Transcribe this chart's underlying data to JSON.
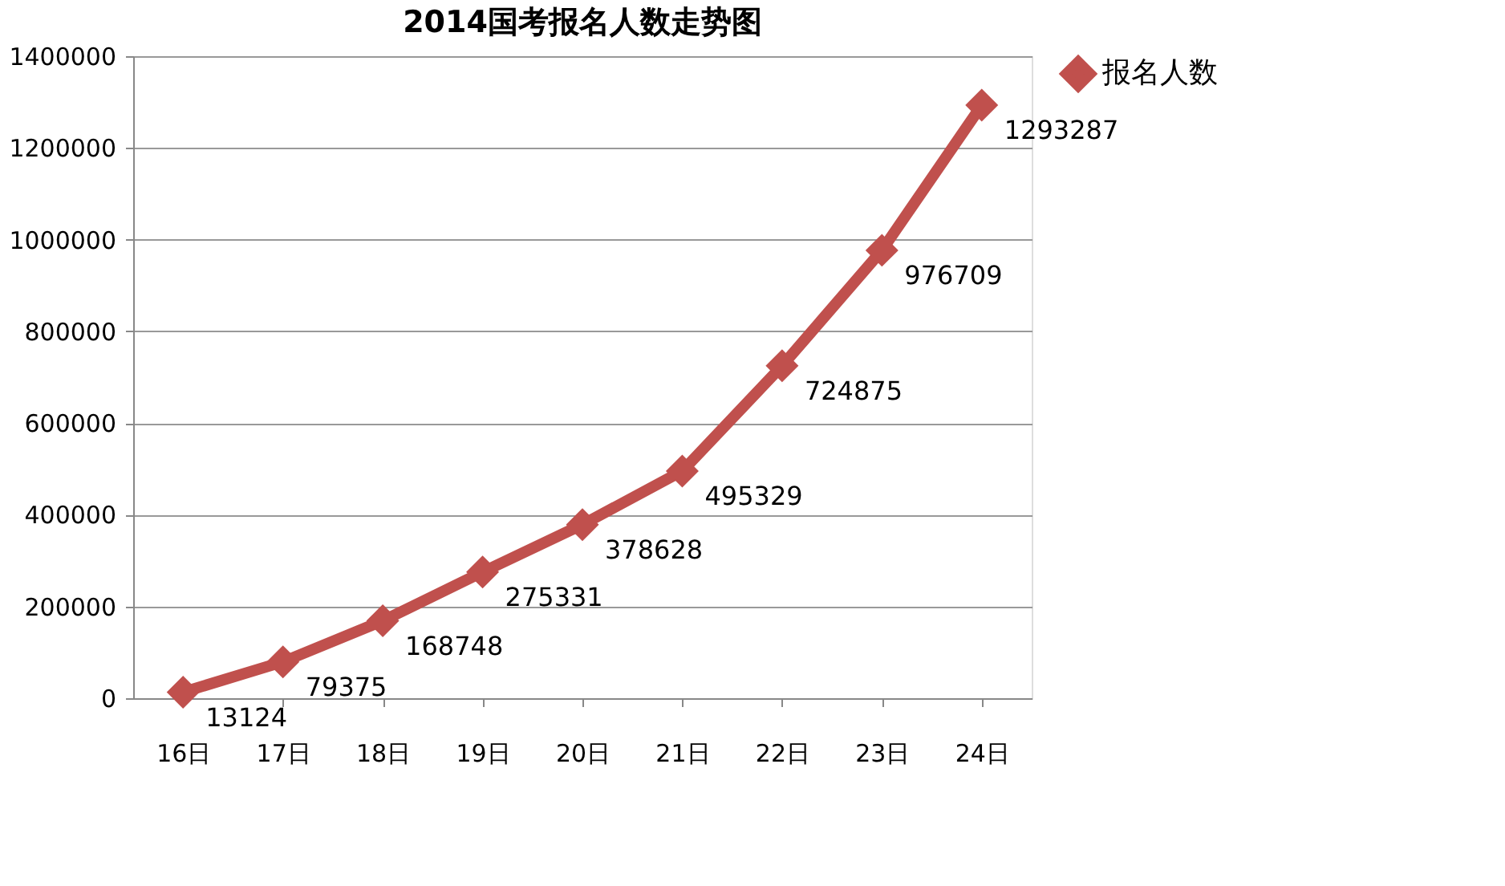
{
  "chart_data": {
    "type": "line",
    "title": "2014国考报名人数走势图",
    "categories": [
      "16日",
      "17日",
      "18日",
      "19日",
      "20日",
      "21日",
      "22日",
      "23日",
      "24日"
    ],
    "series": [
      {
        "name": "报名人数",
        "color": "#c0504d",
        "values": [
          13124,
          79375,
          168748,
          275331,
          378628,
          495329,
          724875,
          976709,
          1293287
        ]
      }
    ],
    "ylim": [
      0,
      1400000
    ],
    "yticks": [
      0,
      200000,
      400000,
      600000,
      800000,
      1000000,
      1200000,
      1400000
    ],
    "grid": "y",
    "legend": "right",
    "marker": "diamond",
    "line_style": "solid",
    "data_labels": true
  }
}
